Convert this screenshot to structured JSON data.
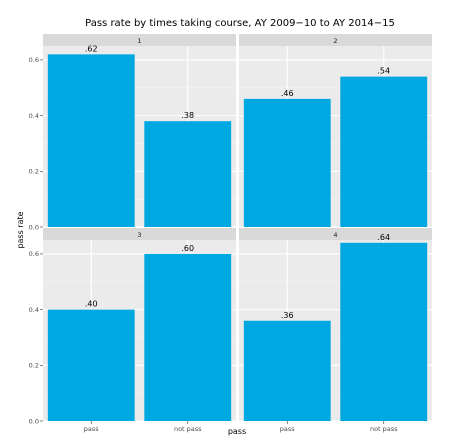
{
  "chart_data": {
    "type": "bar",
    "title": "Pass rate by times taking course, AY 2009−10 to AY 2014−15",
    "xlabel": "pass",
    "ylabel": "pass rate",
    "categories": [
      "pass",
      "not pass"
    ],
    "ylim": [
      0,
      0.65
    ],
    "yticks": [
      0.0,
      0.2,
      0.4,
      0.6
    ],
    "ytick_labels": [
      "0.0",
      "0.2",
      "0.4",
      "0.6"
    ],
    "grid": true,
    "legend": "none",
    "bar_color": "#00a8e1",
    "panel_background": "#ebebeb",
    "strip_background": "#d9d9d9",
    "facets": [
      {
        "label": "1",
        "values": [
          0.62,
          0.38
        ],
        "data_labels": [
          ".62",
          ".38"
        ]
      },
      {
        "label": "2",
        "values": [
          0.46,
          0.54
        ],
        "data_labels": [
          ".46",
          ".54"
        ]
      },
      {
        "label": "3",
        "values": [
          0.4,
          0.6
        ],
        "data_labels": [
          ".40",
          ".60"
        ]
      },
      {
        "label": "4",
        "values": [
          0.36,
          0.64
        ],
        "data_labels": [
          ".36",
          ".64"
        ]
      }
    ]
  }
}
